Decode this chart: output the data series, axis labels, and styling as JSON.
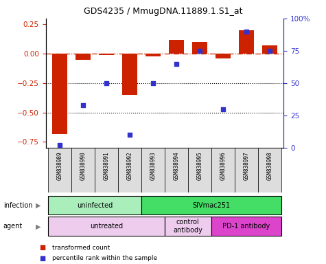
{
  "title": "GDS4235 / MmugDNA.11889.1.S1_at",
  "samples": [
    "GSM838989",
    "GSM838990",
    "GSM838991",
    "GSM838992",
    "GSM838993",
    "GSM838994",
    "GSM838995",
    "GSM838996",
    "GSM838997",
    "GSM838998"
  ],
  "red_bars": [
    -0.68,
    -0.05,
    -0.01,
    -0.35,
    -0.02,
    0.12,
    0.1,
    -0.04,
    0.2,
    0.07
  ],
  "blue_pct": [
    2,
    33,
    50,
    10,
    50,
    65,
    75,
    30,
    90,
    75
  ],
  "ylim": [
    -0.8,
    0.3
  ],
  "y_ticks_left": [
    -0.75,
    -0.5,
    -0.25,
    0,
    0.25
  ],
  "y_ticks_right": [
    0,
    25,
    50,
    75,
    100
  ],
  "red_color": "#CC2200",
  "blue_color": "#3333CC",
  "dashed_line_y": 0,
  "dotted_lines": [
    -0.25,
    -0.5
  ],
  "infection_groups": [
    {
      "label": "uninfected",
      "start": 0,
      "end": 3,
      "color": "#AAEEBB"
    },
    {
      "label": "SIVmac251",
      "start": 4,
      "end": 9,
      "color": "#44DD66"
    }
  ],
  "agent_groups": [
    {
      "label": "untreated",
      "start": 0,
      "end": 4,
      "color": "#EECCEE"
    },
    {
      "label": "control\nantibody",
      "start": 5,
      "end": 6,
      "color": "#EECCEE"
    },
    {
      "label": "PD-1 antibody",
      "start": 7,
      "end": 9,
      "color": "#DD44CC"
    }
  ],
  "legend_items": [
    {
      "label": "transformed count",
      "color": "#CC2200"
    },
    {
      "label": "percentile rank within the sample",
      "color": "#3333CC"
    }
  ],
  "sample_bg": "#DDDDDD",
  "background_color": "#FFFFFF"
}
